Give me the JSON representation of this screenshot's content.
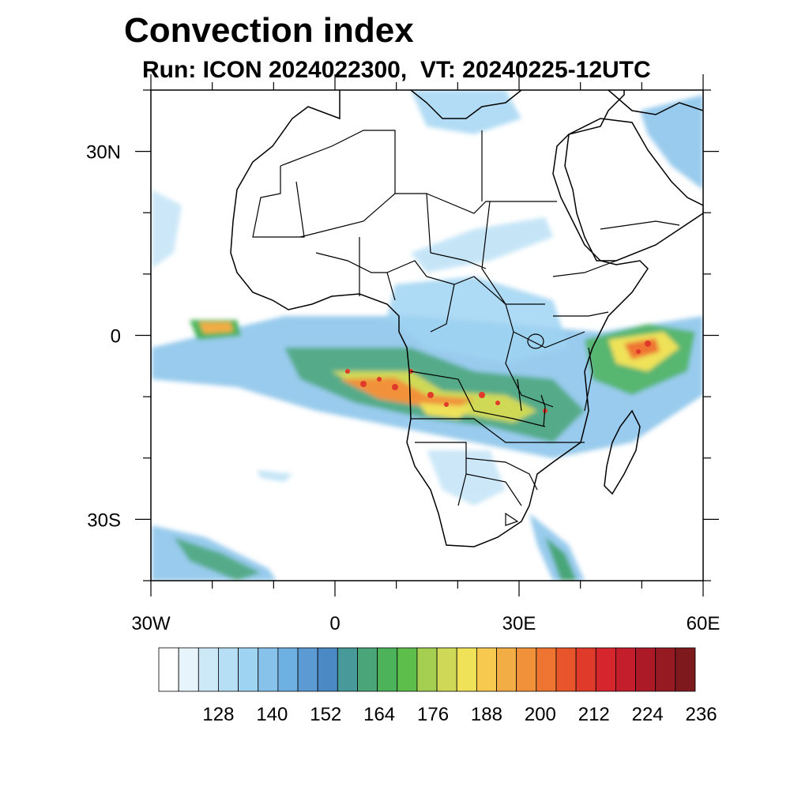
{
  "title": "Convection index",
  "subtitle": "Run: ICON 2024022300,  VT: 20240225-12UTC",
  "map": {
    "lon_range": [
      -30,
      60
    ],
    "lat_range": [
      -40,
      40
    ],
    "x_ticks": [
      {
        "lon": -30,
        "label": "30W"
      },
      {
        "lon": 0,
        "label": "0"
      },
      {
        "lon": 30,
        "label": "30E"
      },
      {
        "lon": 60,
        "label": "60E"
      }
    ],
    "y_ticks": [
      {
        "lat": 30,
        "label": "30N"
      },
      {
        "lat": 0,
        "label": "0"
      },
      {
        "lat": -30,
        "label": "30S"
      }
    ]
  },
  "colorbar": {
    "colors": [
      "#ffffff",
      "#e8f4fb",
      "#cde9f7",
      "#b6def5",
      "#9fd3f2",
      "#86c2ea",
      "#6fb0e2",
      "#5c9ad4",
      "#4a89c4",
      "#47999a",
      "#4aa678",
      "#4cb35a",
      "#5ebe4c",
      "#a4cf50",
      "#cfd957",
      "#efe258",
      "#f7c94f",
      "#f3ad45",
      "#f1923b",
      "#ee7431",
      "#e8552b",
      "#e03a2b",
      "#d5262d",
      "#c41d2b",
      "#ad1a27",
      "#961a22",
      "#7e1a1e"
    ],
    "labels": [
      "128",
      "140",
      "152",
      "164",
      "176",
      "188",
      "200",
      "212",
      "224",
      "236"
    ]
  }
}
